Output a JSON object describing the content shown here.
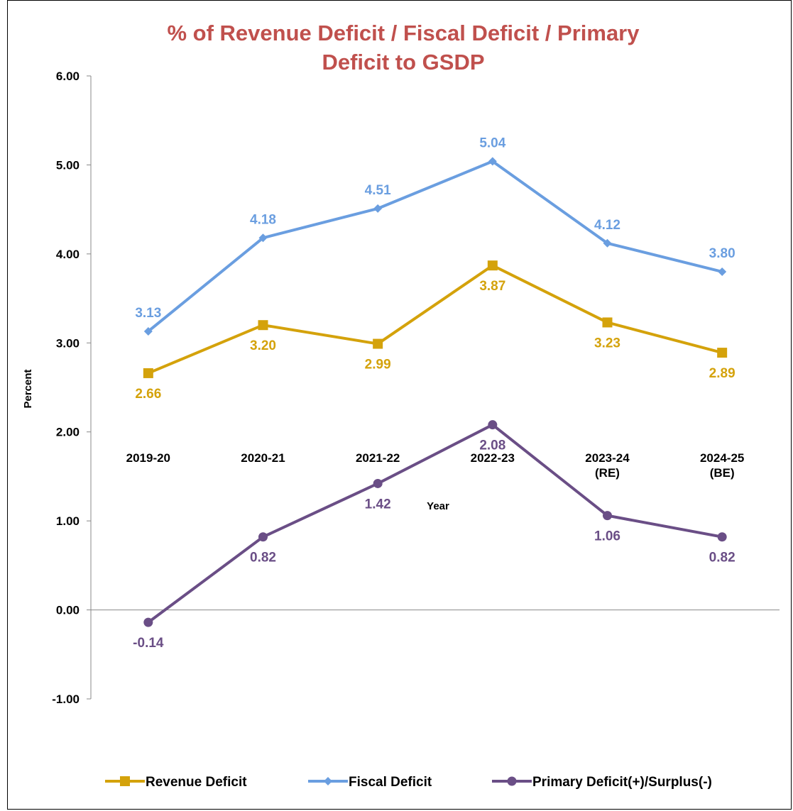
{
  "chart_data": {
    "type": "line",
    "title_lines": [
      "% of Revenue Deficit / Fiscal Deficit / Primary",
      "Deficit to GSDP"
    ],
    "xlabel": "Year",
    "ylabel": "Percent",
    "categories": [
      [
        "2019-20"
      ],
      [
        "2020-21"
      ],
      [
        "2021-22"
      ],
      [
        "2022-23"
      ],
      [
        "2023-24",
        "(RE)"
      ],
      [
        "2024-25",
        "(BE)"
      ]
    ],
    "ylim": [
      -1,
      6
    ],
    "yticks": [
      "-1.00",
      "0.00",
      "1.00",
      "2.00",
      "3.00",
      "4.00",
      "5.00",
      "6.00"
    ],
    "grid": false,
    "legend_position": "bottom",
    "series": [
      {
        "name": "Revenue Deficit",
        "values": [
          2.66,
          3.2,
          2.99,
          3.87,
          3.23,
          2.89
        ],
        "labels": [
          "2.66",
          "3.20",
          "2.99",
          "3.87",
          "3.23",
          "2.89"
        ],
        "color": "#d4a20b",
        "marker": "square",
        "label_position": "below"
      },
      {
        "name": "Fiscal Deficit",
        "values": [
          3.13,
          4.18,
          4.51,
          5.04,
          4.12,
          3.8
        ],
        "labels": [
          "3.13",
          "4.18",
          "4.51",
          "5.04",
          "4.12",
          "3.80"
        ],
        "color": "#6a9ee0",
        "marker": "diamond",
        "label_position": "above"
      },
      {
        "name": "Primary Deficit(+)/Surplus(-)",
        "values": [
          -0.14,
          0.82,
          1.42,
          2.08,
          1.06,
          0.82
        ],
        "labels": [
          "-0.14",
          "0.82",
          "1.42",
          "2.08",
          "1.06",
          "0.82"
        ],
        "color": "#6a4e86",
        "marker": "circle",
        "label_position": "below"
      }
    ]
  }
}
